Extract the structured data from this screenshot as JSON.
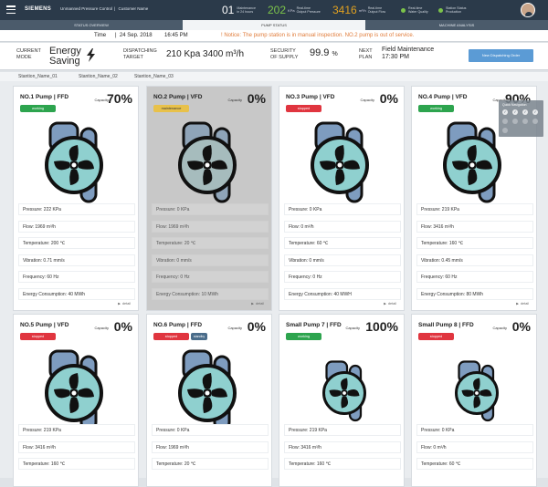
{
  "app": {
    "brand": "SIEMENS",
    "system_name": "Unmanned Pressure Control",
    "customer": "Customer Name"
  },
  "header_metrics": [
    {
      "value": "01",
      "unit": "",
      "label": "Maintenance\nin 24 hours",
      "color": "#ffffff"
    },
    {
      "value": "202",
      "unit": "KPa",
      "label": "Real-time\nOutput Pressure",
      "color": "#7cc34a"
    },
    {
      "value": "3416",
      "unit": "m³/h",
      "label": "Real-time\nOutput Flow",
      "color": "#e0a020"
    },
    {
      "value": "",
      "unit": "",
      "label": "Real-time\nWater Quality",
      "color": "#7cc34a",
      "icon": "water-quality-icon"
    },
    {
      "value": "",
      "unit": "",
      "label": "Station Status\nProduction",
      "color": "#7cc34a",
      "icon": "station-status-icon"
    }
  ],
  "tabs": [
    "STATUS OVERVIEW",
    "PUMP STATUS",
    "MACHINE ANALYSIS"
  ],
  "active_tab": 1,
  "timebar": {
    "time_label": "Time",
    "date": "24 Sep. 2018",
    "clock": "16:45 PM",
    "notice": "! Notice: The pump station is in  manual inspection. NO.2 pump is out of service."
  },
  "summary": {
    "current_mode_label": "CURRENT\nMODE",
    "current_mode_value": "Energy\nSaving",
    "dispatching_label": "DISPATCHING\nTARGET",
    "dispatching_value": "210 Kpa   3400 m³/h",
    "security_label": "SECURITY\nOF SUPPLY",
    "security_value": "99.9",
    "security_unit": "%",
    "next_plan_label": "NEXT\nPLAN",
    "next_plan_value": "Field Maintenance\n17:30 PM",
    "new_order_button": "New Dispatching Order"
  },
  "stations": [
    "Stantion_Name_01",
    "Stantion_Name_02",
    "Stantion_Name_03"
  ],
  "active_station": 0,
  "quick_nav": {
    "title": "Quick Navigation",
    "items": [
      "✓",
      "✓",
      "✓",
      "✓",
      "",
      "",
      "",
      ""
    ]
  },
  "capacity_label": "Capacity",
  "detail_label": "detail",
  "pumps": [
    {
      "name": "NO.1 Pump | FFD",
      "capacity": "70%",
      "status": "working",
      "status_label": "working",
      "disabled": false,
      "fields": [
        "Pressure: 222 KPa",
        "Flow: 1969 m³/h",
        "Temperature: 200 ℃",
        "Vibration: 0.71 mm/s",
        "Frequency: 60 Hz",
        "Energy Consumption: 40 MWh"
      ]
    },
    {
      "name": "NO.2 Pump | VFD",
      "capacity": "0%",
      "status": "maint",
      "status_label": "maintenance",
      "disabled": true,
      "fields": [
        "Pressure: 0 KPa",
        "Flow: 1969 m³/h",
        "Temperature: 20 ℃",
        "Vibration: 0 mm/s",
        "Frequency: 0 Hz",
        "Energy Consumption: 10 MWh"
      ]
    },
    {
      "name": "NO.3 Pump | VFD",
      "capacity": "0%",
      "status": "stopped",
      "status_label": "stopped",
      "disabled": false,
      "fields": [
        "Pressure: 0 KPa",
        "Flow: 0 m³/h",
        "Temperature: 60 ℃",
        "Vibration: 0 mm/s",
        "Frequency: 0 Hz",
        "Energy Consumption: 40 MWH"
      ]
    },
    {
      "name": "NO.4 Pump | VFD",
      "capacity": "90%",
      "status": "working",
      "status_label": "working",
      "disabled": false,
      "fields": [
        "Pressure: 219 KPa",
        "Flow: 3416 m³/h",
        "Temperature: 160 ℃",
        "Vibration: 0.45 mm/s",
        "Frequency: 60 Hz",
        "Energy Consumption: 80 MWh"
      ]
    },
    {
      "name": "NO.5 Pump | VFD",
      "capacity": "0%",
      "status": "stopped",
      "status_label": "stopped",
      "disabled": false,
      "fields": [
        "Pressure: 219 KPa",
        "Flow: 3416 m³/h",
        "Temperature: 160 ℃"
      ]
    },
    {
      "name": "NO.6 Pump | FFD",
      "capacity": "0%",
      "status": "stopped",
      "status_label": "stopped",
      "disabled": false,
      "extra_badge": "standby",
      "fields": [
        "Pressure: 0 KPa",
        "Flow: 1969 m³/h",
        "Temperature: 20 ℃"
      ]
    },
    {
      "name": "Small Pump 7 | FFD",
      "capacity": "100%",
      "status": "working",
      "status_label": "working",
      "disabled": false,
      "fields": [
        "Pressure: 219 KPa",
        "Flow: 3416 m³/h",
        "Temperature: 160 ℃"
      ]
    },
    {
      "name": "Small Pump 8 | FFD",
      "capacity": "0%",
      "status": "stopped",
      "status_label": "stopped",
      "disabled": false,
      "fields": [
        "Pressure: 0 KPa",
        "Flow: 0 m³/h",
        "Temperature: 60 ℃"
      ]
    }
  ]
}
